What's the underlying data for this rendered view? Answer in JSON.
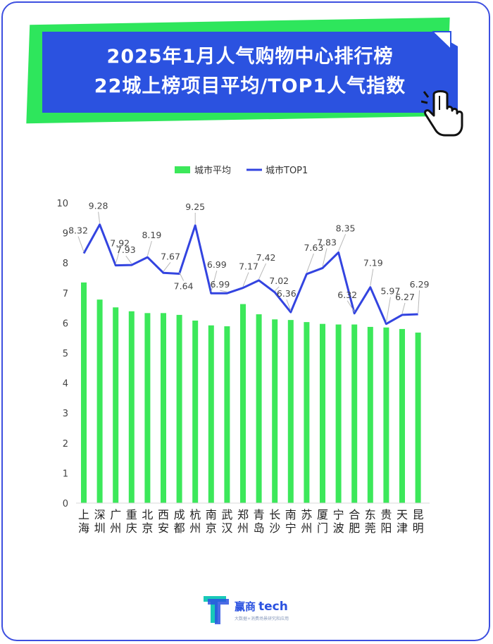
{
  "header": {
    "title_line1": "2025年1月人气购物中心排行榜",
    "title_line2": "22城上榜项目平均/TOP1人气指数"
  },
  "colors": {
    "bar": "#3ce85a",
    "line": "#3344e0",
    "banner_blue": "#2b52e0",
    "banner_green": "#2ee65c",
    "frame": "#3d4fe0"
  },
  "icons": {
    "cursor": "hand-pointer-icon",
    "logo": "yingshang-tech-logo"
  },
  "logo": {
    "brand_cn": "赢商",
    "brand_en": "tech",
    "tagline": "大数据+消费场景研究和应用"
  },
  "chart_data": {
    "type": "bar",
    "categories": [
      "上海",
      "深圳",
      "广州",
      "重庆",
      "北京",
      "西安",
      "成都",
      "杭州",
      "南京",
      "武汉",
      "郑州",
      "青岛",
      "长沙",
      "南宁",
      "苏州",
      "厦门",
      "宁波",
      "合肥",
      "东莞",
      "贵阳",
      "天津",
      "昆明"
    ],
    "series": [
      {
        "name": "城市平均",
        "type": "bar",
        "values": [
          7.35,
          6.78,
          6.52,
          6.39,
          6.33,
          6.33,
          6.27,
          6.08,
          5.92,
          5.89,
          6.63,
          6.29,
          6.12,
          6.1,
          6.03,
          5.97,
          5.95,
          5.95,
          5.87,
          5.85,
          5.8,
          5.68
        ]
      },
      {
        "name": "城市TOP1",
        "type": "line",
        "values": [
          8.32,
          9.28,
          7.92,
          7.93,
          8.19,
          7.67,
          7.64,
          9.25,
          6.99,
          6.99,
          7.17,
          7.42,
          7.02,
          6.36,
          7.63,
          7.83,
          8.35,
          6.32,
          7.19,
          5.97,
          6.27,
          6.29
        ],
        "labels": [
          "8.32",
          "9.28",
          "7.92",
          "7.93",
          "8.19",
          "7.67",
          "7.64",
          "9.25",
          "6.99",
          "6.99",
          "7.17",
          "7.42",
          "7.02",
          "6.36",
          "7.63",
          "7.83",
          "8.35",
          "6.32",
          "7.19",
          "5.97",
          "6.27",
          "6.29"
        ]
      }
    ],
    "yticks": [
      "0",
      "1",
      "2",
      "3",
      "4",
      "5",
      "6",
      "7",
      "8",
      "9",
      "10"
    ],
    "ylim": [
      0,
      10
    ],
    "grid": false,
    "legend_position": "top-center"
  }
}
